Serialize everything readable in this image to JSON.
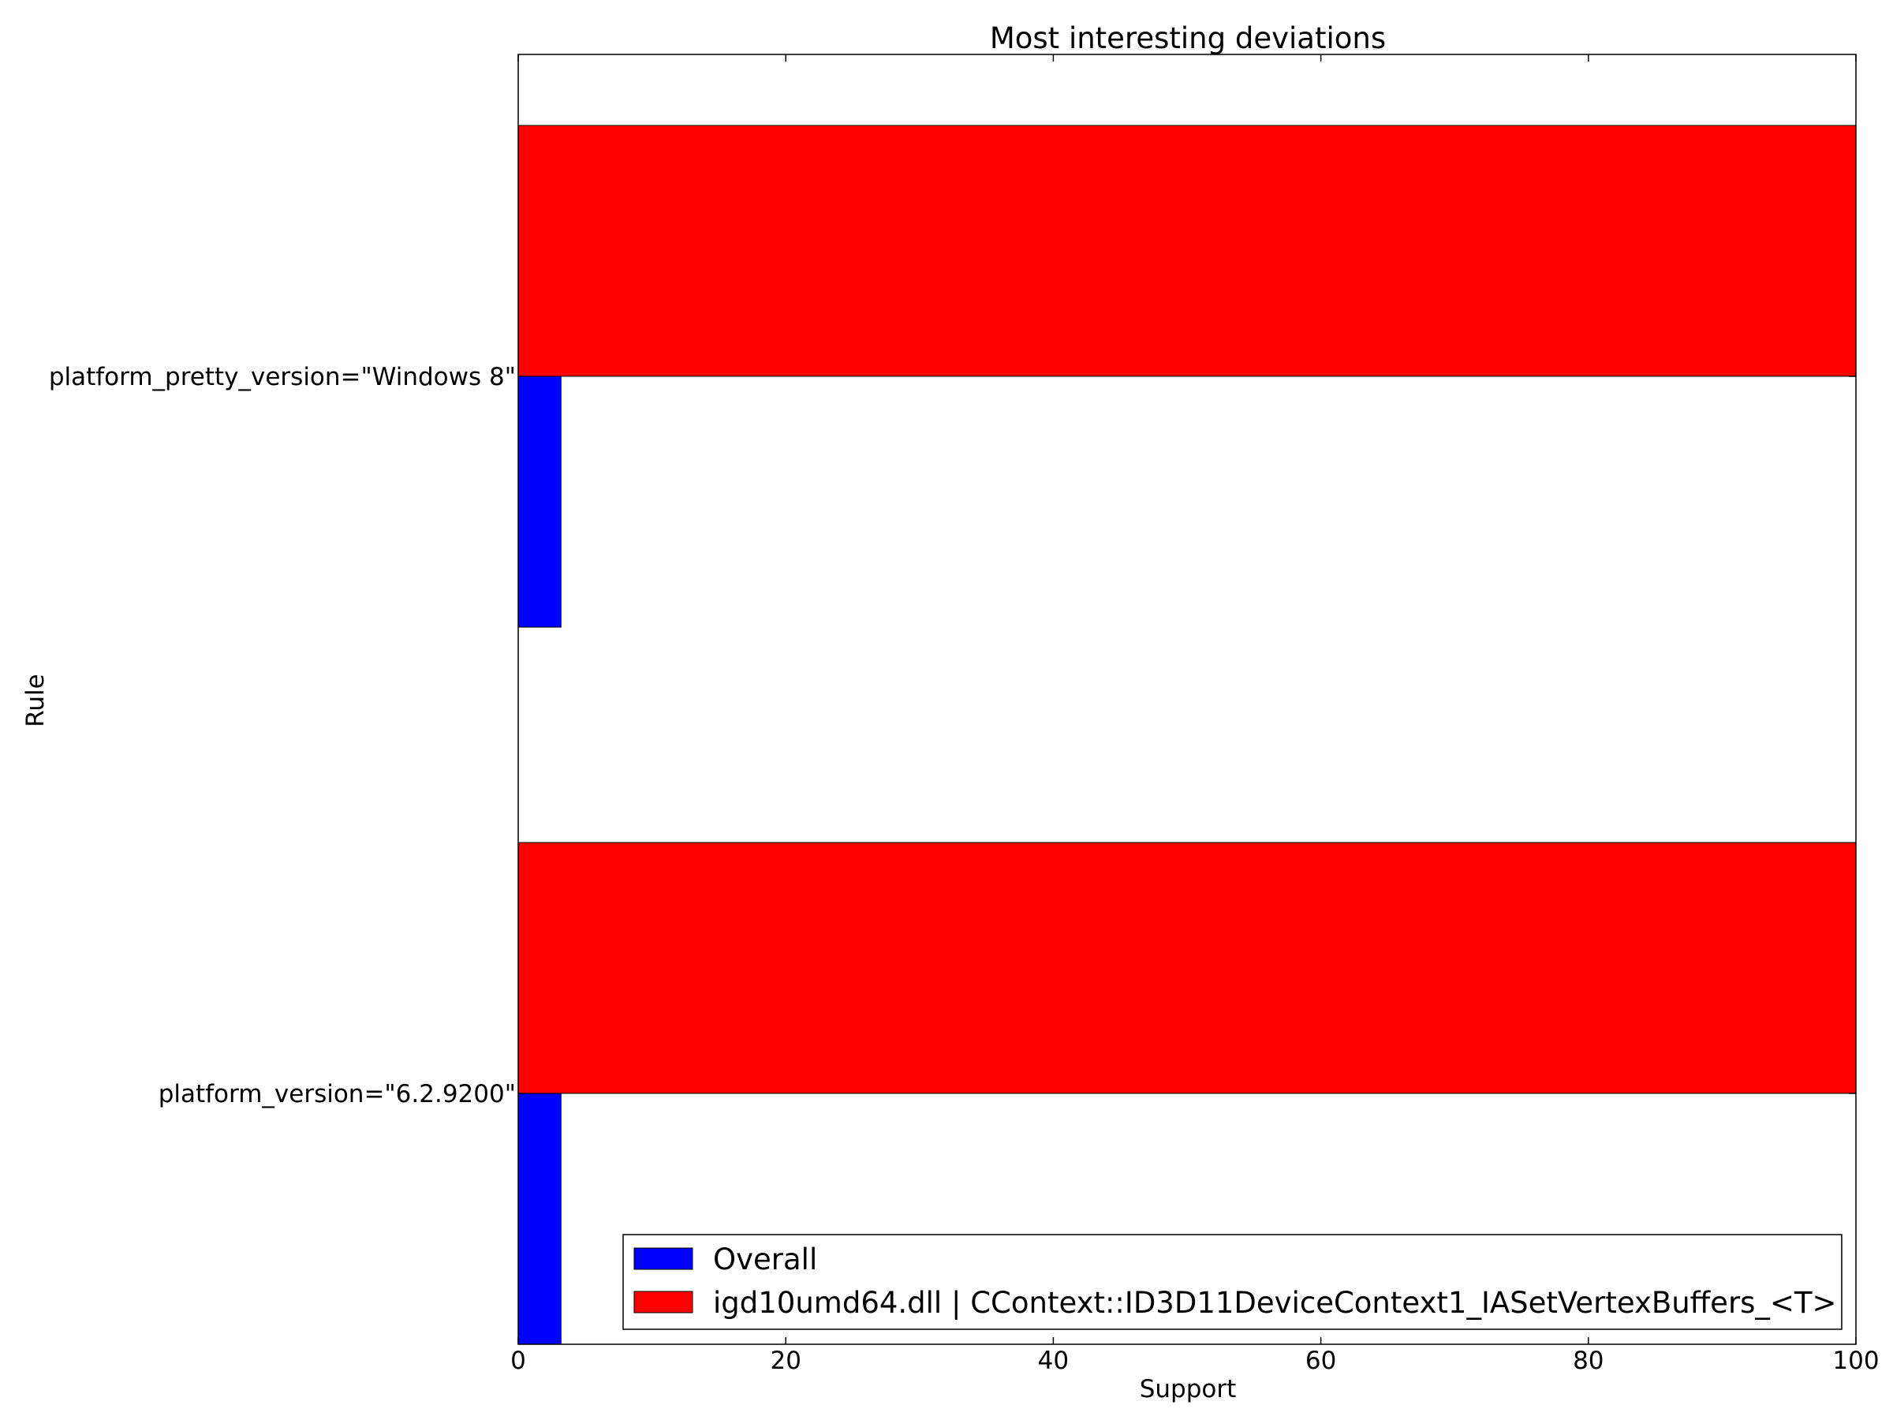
{
  "chart_data": {
    "type": "bar",
    "orientation": "horizontal",
    "title": "Most interesting deviations",
    "xlabel": "Support",
    "ylabel": "Rule",
    "xlim": [
      0,
      100
    ],
    "xticks": [
      "0",
      "20",
      "40",
      "60",
      "80",
      "100"
    ],
    "categories": [
      "platform_pretty_version=\"Windows 8\"",
      "platform_version=\"6.2.9200\""
    ],
    "series": [
      {
        "name": "Overall",
        "color": "#0000ff",
        "values": [
          3.2,
          3.2
        ]
      },
      {
        "name": "igd10umd64.dll | CContext::ID3D11DeviceContext1_IASetVertexBuffers_<T>",
        "color": "#ff0000",
        "values": [
          100,
          100
        ]
      }
    ],
    "grid": false,
    "legend_position": "lower-right"
  }
}
